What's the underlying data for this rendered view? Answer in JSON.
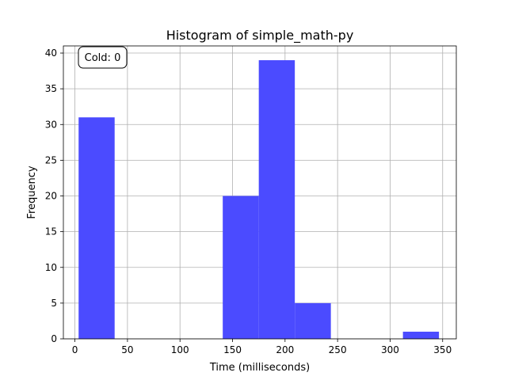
{
  "chart_data": {
    "type": "bar",
    "title": "Histogram of simple_math-py",
    "xlabel": "Time (milliseconds)",
    "ylabel": "Frequency",
    "xlim": [
      -11,
      363
    ],
    "ylim": [
      0,
      41
    ],
    "xticks": [
      0,
      50,
      100,
      150,
      200,
      250,
      300,
      350
    ],
    "yticks": [
      0,
      5,
      10,
      15,
      20,
      25,
      30,
      35,
      40
    ],
    "grid": true,
    "bar_color": "#4b4bff",
    "bins": [
      {
        "start": 3.5,
        "end": 37.8,
        "count": 31
      },
      {
        "start": 37.8,
        "end": 72.1,
        "count": 0
      },
      {
        "start": 72.1,
        "end": 106.4,
        "count": 0
      },
      {
        "start": 106.4,
        "end": 140.7,
        "count": 0
      },
      {
        "start": 140.7,
        "end": 175.0,
        "count": 20
      },
      {
        "start": 175.0,
        "end": 209.3,
        "count": 39
      },
      {
        "start": 209.3,
        "end": 243.6,
        "count": 5
      },
      {
        "start": 243.6,
        "end": 277.9,
        "count": 0
      },
      {
        "start": 277.9,
        "end": 312.2,
        "count": 0
      },
      {
        "start": 312.2,
        "end": 346.5,
        "count": 1
      }
    ],
    "annotation": "Cold: 0"
  }
}
